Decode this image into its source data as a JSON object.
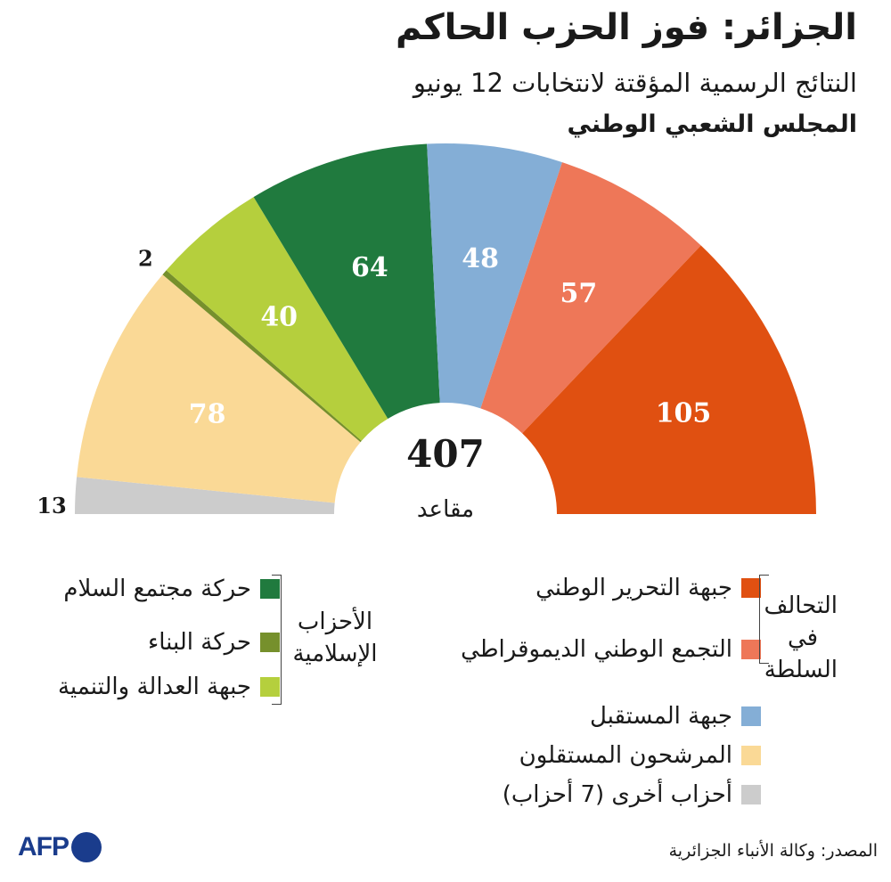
{
  "title": "الجزائر: فوز الحزب الحاكم",
  "subtitle": "النتائج الرسمية المؤقتة لانتخابات 12 يونيو",
  "subtitle2": "المجلس الشعبي الوطني",
  "chart_data": {
    "type": "parliament-semicircle",
    "total": 407,
    "total_label": "مقاعد",
    "order": "left-to-right",
    "series": [
      {
        "name": "أحزاب أخرى (7 أحزاب)",
        "value": 13,
        "color": "#cccccc",
        "label_color": "#1a1a1a",
        "label_outside": true
      },
      {
        "name": "المرشحون المستقلون",
        "value": 78,
        "color": "#fad996",
        "label_color": "#ffffff",
        "label_outside": false
      },
      {
        "name": "حركة البناء",
        "value": 2,
        "color": "#76902c",
        "label_color": "#1a1a1a",
        "label_outside": true
      },
      {
        "name": "جبهة العدالة والتنمية",
        "value": 40,
        "color": "#b5cf3d",
        "label_color": "#ffffff",
        "label_outside": false
      },
      {
        "name": "حركة مجتمع السلام",
        "value": 64,
        "color": "#207a3e",
        "label_color": "#ffffff",
        "label_outside": false
      },
      {
        "name": "جبهة المستقبل",
        "value": 48,
        "color": "#84aed6",
        "label_color": "#ffffff",
        "label_outside": false
      },
      {
        "name": "التجمع الوطني الديموقراطي",
        "value": 57,
        "color": "#ee7758",
        "label_color": "#ffffff",
        "label_outside": false
      },
      {
        "name": "جبهة التحرير الوطني",
        "value": 105,
        "color": "#e05011",
        "label_color": "#ffffff",
        "label_outside": false
      }
    ]
  },
  "legend": {
    "coalition_label": "التحالف في السلطة",
    "coalition_items": [
      {
        "name": "جبهة التحرير الوطني",
        "color": "#e05011"
      },
      {
        "name": "التجمع الوطني الديموقراطي",
        "color": "#ee7758"
      }
    ],
    "other_items": [
      {
        "name": "جبهة المستقبل",
        "color": "#84aed6"
      },
      {
        "name": "المرشحون المستقلون",
        "color": "#fad996"
      },
      {
        "name": "أحزاب أخرى (7 أحزاب)",
        "color": "#cccccc"
      }
    ],
    "islamist_label": "الأحزاب الإسلامية",
    "islamist_items": [
      {
        "name": "حركة مجتمع السلام",
        "color": "#207a3e"
      },
      {
        "name": "حركة البناء",
        "color": "#76902c"
      },
      {
        "name": "جبهة العدالة والتنمية",
        "color": "#b5cf3d"
      }
    ]
  },
  "source": "المصدر: وكالة الأنباء الجزائرية",
  "logo": {
    "text": "AFP",
    "color": "#1a3c8c"
  }
}
